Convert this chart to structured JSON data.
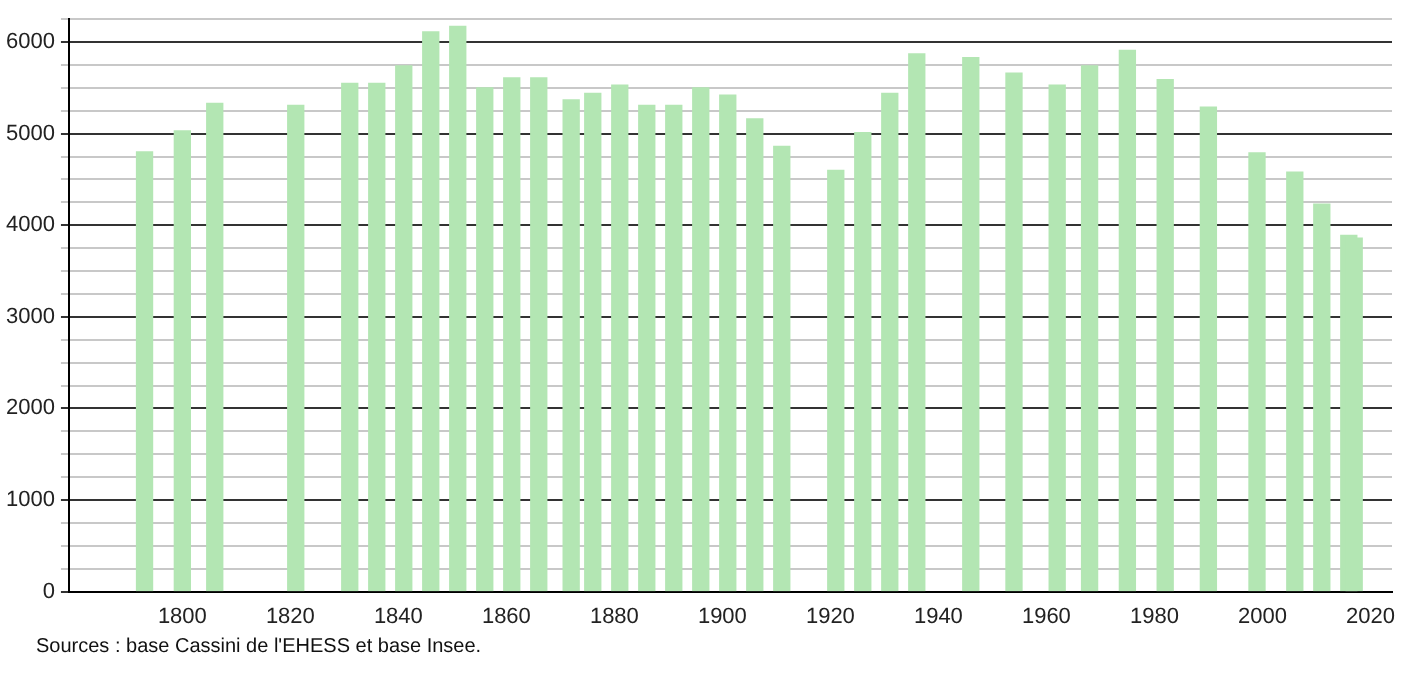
{
  "chart_data": {
    "type": "bar",
    "x": [
      1793,
      1800,
      1806,
      1821,
      1831,
      1836,
      1841,
      1846,
      1851,
      1856,
      1861,
      1866,
      1872,
      1876,
      1881,
      1886,
      1891,
      1896,
      1901,
      1906,
      1911,
      1921,
      1926,
      1931,
      1936,
      1946,
      1954,
      1962,
      1968,
      1975,
      1982,
      1990,
      1999,
      2006,
      2011,
      2016,
      2017
    ],
    "values": [
      4800,
      5030,
      5330,
      5310,
      5550,
      5550,
      5740,
      6110,
      6170,
      5500,
      5610,
      5610,
      5370,
      5440,
      5530,
      5310,
      5310,
      5500,
      5420,
      5160,
      4860,
      4600,
      5010,
      5440,
      5870,
      5830,
      5660,
      5530,
      5740,
      5910,
      5590,
      5290,
      4790,
      4580,
      4230,
      3890,
      3860
    ],
    "color": "#b3e6b3",
    "xlim": [
      1779,
      2024
    ],
    "xticks": [
      1800,
      1820,
      1840,
      1860,
      1880,
      1900,
      1920,
      1940,
      1960,
      1980,
      2000,
      2020
    ],
    "ylim": [
      0,
      6250
    ],
    "yticks": [
      0,
      {
        "value": 250,
        "label": null
      },
      {
        "value": 500,
        "label": null
      },
      {
        "value": 750,
        "label": null
      },
      1000,
      {
        "value": 1250,
        "label": null
      },
      {
        "value": 1500,
        "label": null
      },
      {
        "value": 1750,
        "label": null
      },
      2000,
      {
        "value": 2250,
        "label": null
      },
      {
        "value": 2500,
        "label": null
      },
      {
        "value": 2750,
        "label": null
      },
      3000,
      {
        "value": 3250,
        "label": null
      },
      {
        "value": 3500,
        "label": null
      },
      {
        "value": 3750,
        "label": null
      },
      4000,
      {
        "value": 4250,
        "label": null
      },
      {
        "value": 4500,
        "label": null
      },
      {
        "value": 4750,
        "label": null
      },
      5000,
      {
        "value": 5250,
        "label": null
      },
      {
        "value": 5500,
        "label": null
      },
      {
        "value": 5750,
        "label": null
      },
      6000,
      {
        "value": 6250,
        "label": null
      }
    ],
    "grid": "y",
    "legend": false,
    "annotations": [
      "Sources : base Cassini de l'EHESS et base Insee."
    ]
  }
}
